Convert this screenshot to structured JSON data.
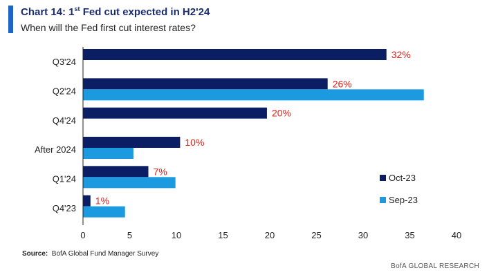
{
  "title": {
    "prefix": "Chart 14:  1",
    "sup": "st",
    "suffix": " Fed cut expected in H2'24"
  },
  "subtitle": "When will the Fed first cut interest rates?",
  "source": {
    "label": "Source:",
    "text": "BofA Global Fund Manager Survey"
  },
  "footer": "BofA GLOBAL RESEARCH",
  "colors": {
    "oct": "#0c1e63",
    "sep": "#1c9ae0",
    "label": "#e0211c"
  },
  "chart_data": {
    "type": "bar",
    "orientation": "horizontal",
    "categories": [
      "Q3'24",
      "Q2'24",
      "Q4'24",
      "After 2024",
      "Q1'24",
      "Q4'23"
    ],
    "series": [
      {
        "name": "Oct-23",
        "values": [
          32.5,
          26.2,
          19.7,
          10.4,
          7.0,
          0.8
        ],
        "labels": [
          "32%",
          "26%",
          "20%",
          "10%",
          "7%",
          "1%"
        ]
      },
      {
        "name": "Sep-23",
        "values": [
          0,
          36.5,
          0,
          5.4,
          9.9,
          4.5
        ]
      }
    ],
    "xlim": [
      0,
      40
    ],
    "xticks": [
      0,
      5,
      10,
      15,
      20,
      25,
      30,
      35,
      40
    ],
    "grid": false,
    "legend_position": "right"
  }
}
